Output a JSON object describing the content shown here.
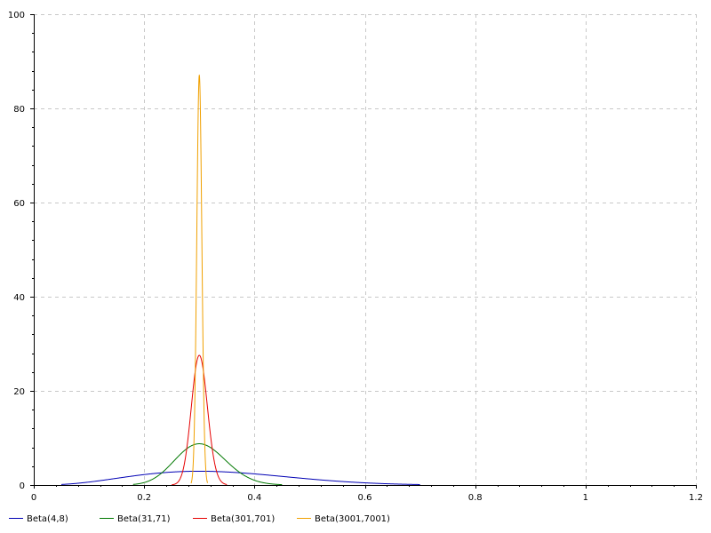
{
  "chart_data": {
    "type": "line",
    "title": "",
    "xlabel": "",
    "ylabel": "",
    "xlim": [
      0,
      1.2
    ],
    "ylim": [
      0,
      100
    ],
    "grid": true,
    "legend_position": "bottom-left",
    "x_ticks": [
      "0",
      "0.2",
      "0.4",
      "0.6",
      "0.8",
      "1",
      "1.2"
    ],
    "y_ticks": [
      "0",
      "20",
      "40",
      "60",
      "80",
      "100"
    ],
    "series": [
      {
        "name": "Beta(4,8)",
        "color": "#0000b4",
        "alpha": 4,
        "beta": 8,
        "x_range": [
          0.05,
          0.7
        ]
      },
      {
        "name": "Beta(31,71)",
        "color": "#007800",
        "alpha": 31,
        "beta": 71,
        "x_range": [
          0.18,
          0.45
        ]
      },
      {
        "name": "Beta(301,701)",
        "color": "#e60000",
        "alpha": 301,
        "beta": 701,
        "x_range": [
          0.25,
          0.35
        ]
      },
      {
        "name": "Beta(3001,7001)",
        "color": "#f0a000",
        "alpha": 3001,
        "beta": 7001,
        "x_range": [
          0.285,
          0.315
        ]
      }
    ]
  }
}
